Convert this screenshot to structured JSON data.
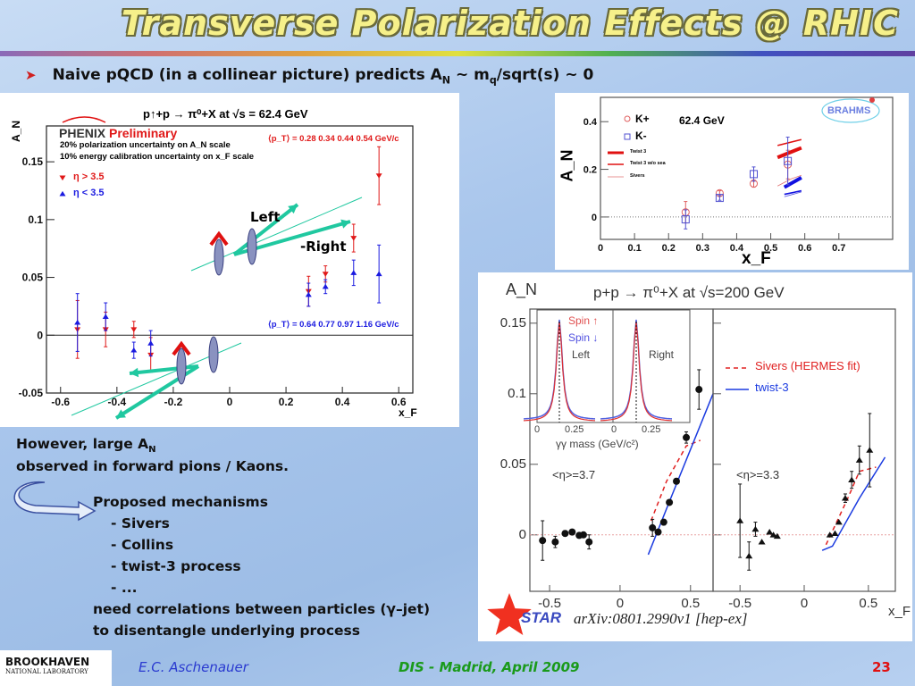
{
  "slide": {
    "title": "Transverse Polarization Effects @ RHIC",
    "bullet": {
      "prefix": "Naive pQCD (in a collinear picture) predicts A",
      "sub1": "N",
      "mid": " ~ m",
      "sub2": "q",
      "suffix": "/sqrt(s) ~ 0",
      "icon": "arrow-bullet-icon"
    },
    "text": {
      "line1_prefix": "However, large A",
      "line1_sub": "N",
      "line2": "observed in forward pions / Kaons.",
      "mechanisms_heading": "Proposed mechanisms",
      "mechanisms": [
        "- Sivers",
        "- Collins",
        "- twist-3 process",
        "- ..."
      ],
      "line_corr": "need correlations between particles (γ–jet)",
      "line_dis": "to disentangle underlying process"
    },
    "footer": {
      "logo_main": "BROOKHAVEN",
      "logo_sub": "NATIONAL LABORATORY",
      "author": "E.C. Aschenauer",
      "event": "DIS - Madrid, April 2009",
      "page": "23",
      "colors": {
        "author": "#2a3ad0",
        "event": "#1a9a1a",
        "page": "#e01010"
      }
    }
  },
  "chart_data": [
    {
      "id": "phenix",
      "type": "scatter",
      "title": "p↑+p → π⁰+X at √s = 62.4 GeV",
      "ylabel": "A_N",
      "xlabel": "x_F",
      "logo": "PHENIX",
      "preliminary": "Preliminary",
      "notes": [
        "20% polarization uncertainty on A_N scale",
        "10% energy calibration uncertainty on x_F scale"
      ],
      "pt_red": "⟨p_T⟩ = 0.28  0.34  0.44  0.54 GeV/c",
      "pt_blue": "⟨p_T⟩ = 0.64  0.77  0.97  1.16 GeV/c",
      "annotations": [
        "Left",
        "-Right"
      ],
      "xlim": [
        -0.65,
        0.65
      ],
      "ylim": [
        -0.05,
        0.181
      ],
      "xticks": [
        -0.6,
        -0.4,
        -0.2,
        0,
        0.2,
        0.4,
        0.6
      ],
      "xtick_labels": [
        "-0.6",
        "-0.4",
        "-0.2",
        "0",
        "0.2",
        "0.4",
        "0.6"
      ],
      "yticks": [
        -0.05,
        0,
        0.05,
        0.1,
        0.15
      ],
      "ytick_labels": [
        "-0.05",
        "0",
        "0.05",
        "0.1",
        "0.15"
      ],
      "series": [
        {
          "name": "η > 3.5",
          "color": "#e01818",
          "marker": "tri-down",
          "points": [
            [
              -0.54,
              0.005,
              0.025
            ],
            [
              -0.44,
              0.005,
              0.015
            ],
            [
              -0.34,
              0.005,
              0.007
            ],
            [
              -0.28,
              -0.017,
              0.015
            ],
            [
              0.28,
              0.038,
              0.013
            ],
            [
              0.34,
              0.053,
              0.007
            ],
            [
              0.44,
              0.084,
              0.012
            ],
            [
              0.53,
              0.138,
              0.025
            ]
          ]
        },
        {
          "name": "η < 3.5",
          "color": "#1a1ae0",
          "marker": "tri-up",
          "points": [
            [
              -0.54,
              0.011,
              0.025
            ],
            [
              -0.44,
              0.016,
              0.012
            ],
            [
              -0.34,
              -0.013,
              0.007
            ],
            [
              -0.28,
              -0.007,
              0.011
            ],
            [
              0.28,
              0.035,
              0.01
            ],
            [
              0.34,
              0.042,
              0.006
            ],
            [
              0.44,
              0.054,
              0.011
            ],
            [
              0.53,
              0.053,
              0.025
            ]
          ]
        }
      ]
    },
    {
      "id": "brahms",
      "type": "scatter",
      "title": "",
      "ylabel": "A_N",
      "xlabel": "x_F",
      "energy": "62.4 GeV",
      "logo": "BRAHMS",
      "xlim": [
        0,
        0.858
      ],
      "ylim": [
        -0.094,
        0.502
      ],
      "xticks": [
        0,
        0.1,
        0.2,
        0.3,
        0.4,
        0.5,
        0.6,
        0.7
      ],
      "xtick_labels": [
        "0",
        "0.1",
        "0.2",
        "0.3",
        "0.4",
        "0.5",
        "0.6",
        "0.7"
      ],
      "yticks": [
        0,
        0.2,
        0.4
      ],
      "ytick_labels": [
        "0",
        "0.2",
        "0.4"
      ],
      "series": [
        {
          "name": "K+",
          "color": "#e06060",
          "marker": "circle-open",
          "points": [
            [
              0.25,
              0.02,
              0.045
            ],
            [
              0.35,
              0.1,
              0.01
            ],
            [
              0.45,
              0.14,
              0.015
            ],
            [
              0.55,
              0.22,
              0.06
            ]
          ]
        },
        {
          "name": "K-",
          "color": "#5050d0",
          "marker": "square-open",
          "points": [
            [
              0.25,
              -0.01,
              0.04
            ],
            [
              0.35,
              0.08,
              0.01
            ],
            [
              0.45,
              0.18,
              0.03
            ],
            [
              0.55,
              0.235,
              0.1
            ]
          ]
        }
      ],
      "curves": [
        {
          "name": "Twist 3",
          "color": "#e01010",
          "width": 4,
          "points": [
            [
              0.52,
              0.25
            ],
            [
              0.59,
              0.29
            ]
          ]
        },
        {
          "name": "",
          "color": "#1010e0",
          "width": 4,
          "points": [
            [
              0.54,
              0.125
            ],
            [
              0.59,
              0.165
            ]
          ]
        },
        {
          "name": "Twist 3 w/o sea",
          "color": "#e01010",
          "width": 1.6,
          "points": [
            [
              0.52,
              0.3
            ],
            [
              0.59,
              0.325
            ]
          ]
        },
        {
          "name": "",
          "color": "#1010e0",
          "width": 1.6,
          "points": [
            [
              0.54,
              0.095
            ],
            [
              0.59,
              0.11
            ]
          ]
        },
        {
          "name": "Sivers",
          "color": "#e07070",
          "width": 0.8,
          "points": [
            [
              0.52,
              0.13
            ],
            [
              0.56,
              0.16
            ],
            [
              0.59,
              0.175
            ]
          ]
        },
        {
          "name": "",
          "color": "#5050e0",
          "width": 0.8,
          "points": [
            [
              0.54,
              0.085
            ],
            [
              0.59,
              0.105
            ]
          ]
        }
      ]
    },
    {
      "id": "star",
      "type": "scatter",
      "title": "p+p → π⁰+X at √s=200 GeV",
      "ylabel": "A_N",
      "xlabel": "x_F",
      "citation": "arXiv:0801.2990v1 [hep-ex]",
      "logo": "STAR",
      "legend": [
        {
          "name": "Sivers (HERMES fit)",
          "color": "#e02020",
          "dash": true
        },
        {
          "name": "twist-3",
          "color": "#1a3ae0",
          "dash": false
        }
      ],
      "inset": {
        "labels": [
          "Spin ↑",
          "Spin ↓",
          "Left",
          "Right"
        ],
        "xtick_labels": [
          "0",
          "0.25",
          "0",
          "0.25"
        ],
        "xlabel": "γγ mass (GeV/c²)"
      },
      "ylim": [
        -0.04,
        0.16
      ],
      "yticks": [
        0,
        0.05,
        0.1,
        0.15
      ],
      "ytick_labels": [
        "0",
        "0.05",
        "0.1",
        "0.15"
      ],
      "panels": [
        {
          "label": "<η>=3.7",
          "xlim": [
            -0.64,
            0.66
          ],
          "xticks": [
            -0.5,
            0,
            0.5
          ],
          "xtick_labels": [
            "-0.5",
            "0",
            "0.5"
          ],
          "marker": "circle-filled",
          "points": [
            [
              -0.55,
              -0.004,
              0.014
            ],
            [
              -0.46,
              -0.005,
              0.004
            ],
            [
              -0.39,
              0.001,
              0.002
            ],
            [
              -0.34,
              0.002,
              0
            ],
            [
              -0.29,
              -0.0004,
              0
            ],
            [
              -0.26,
              0,
              0
            ],
            [
              -0.22,
              -0.005,
              0.005
            ],
            [
              0.23,
              0.005,
              0.006
            ],
            [
              0.27,
              0.002,
              0
            ],
            [
              0.31,
              0.009,
              0.002
            ],
            [
              0.35,
              0.023,
              0
            ],
            [
              0.4,
              0.038,
              0.002
            ],
            [
              0.47,
              0.069,
              0.004
            ],
            [
              0.56,
              0.103,
              0.014
            ]
          ],
          "sivers": [
            [
              0.22,
              0.01
            ],
            [
              0.33,
              0.038
            ],
            [
              0.47,
              0.063
            ],
            [
              0.57,
              0.067
            ]
          ],
          "twist3": [
            [
              0.2,
              -0.014
            ],
            [
              0.36,
              0.026
            ],
            [
              0.66,
              0.1
            ]
          ]
        },
        {
          "label": "<η>=3.3",
          "xlim": [
            -0.71,
            0.71
          ],
          "xticks": [
            -0.5,
            0,
            0.5
          ],
          "xtick_labels": [
            "-0.5",
            "0",
            "0.5"
          ],
          "marker": "tri-filled",
          "points": [
            [
              -0.5,
              0.01,
              0.026
            ],
            [
              -0.43,
              -0.015,
              0.01
            ],
            [
              -0.38,
              0.004,
              0.005
            ],
            [
              -0.33,
              -0.005,
              0
            ],
            [
              -0.27,
              0.002,
              0
            ],
            [
              -0.24,
              0,
              0
            ],
            [
              -0.21,
              -0.001,
              0
            ],
            [
              0.2,
              0,
              0
            ],
            [
              0.24,
              0.001,
              0
            ],
            [
              0.27,
              0.009,
              0
            ],
            [
              0.32,
              0.026,
              0.003
            ],
            [
              0.37,
              0.039,
              0.006
            ],
            [
              0.43,
              0.053,
              0.01
            ],
            [
              0.51,
              0.06,
              0.026
            ]
          ],
          "sivers": [
            [
              0.17,
              -0.007
            ],
            [
              0.34,
              0.026
            ],
            [
              0.43,
              0.045
            ],
            [
              0.56,
              0.048
            ]
          ],
          "twist3": [
            [
              0.14,
              -0.011
            ],
            [
              0.22,
              -0.008
            ],
            [
              0.43,
              0.026
            ],
            [
              0.63,
              0.055
            ]
          ]
        }
      ]
    }
  ]
}
